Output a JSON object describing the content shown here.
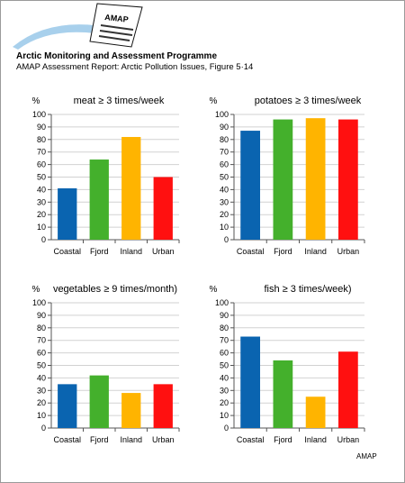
{
  "header": {
    "title": "Arctic Monitoring and Assessment Programme",
    "subtitle": "AMAP Assessment Report: Arctic Pollution Issues, Figure 5·14",
    "logo_text": "AMAP"
  },
  "footer": {
    "credit": "AMAP"
  },
  "colors": {
    "Coastal": "#0a64b0",
    "Fjord": "#44b02c",
    "Inland": "#ffb400",
    "Urban": "#ff1010"
  },
  "chart_data": [
    {
      "type": "bar",
      "title": "meat ≥ 3 times/week",
      "ylabel": "%",
      "categories": [
        "Coastal",
        "Fjord",
        "Inland",
        "Urban"
      ],
      "values": [
        41,
        64,
        82,
        50
      ],
      "ylim": [
        0,
        100
      ],
      "yticks": [
        0,
        10,
        20,
        30,
        40,
        50,
        60,
        70,
        80,
        90,
        100
      ],
      "grid": true
    },
    {
      "type": "bar",
      "title": "potatoes ≥ 3 times/week",
      "ylabel": "%",
      "categories": [
        "Coastal",
        "Fjord",
        "Inland",
        "Urban"
      ],
      "values": [
        87,
        96,
        97,
        96
      ],
      "ylim": [
        0,
        100
      ],
      "yticks": [
        0,
        10,
        20,
        30,
        40,
        50,
        60,
        70,
        80,
        90,
        100
      ],
      "grid": true
    },
    {
      "type": "bar",
      "title": "vegetables ≥ 9 times/month)",
      "ylabel": "%",
      "categories": [
        "Coastal",
        "Fjord",
        "Inland",
        "Urban"
      ],
      "values": [
        35,
        42,
        28,
        35
      ],
      "ylim": [
        0,
        100
      ],
      "yticks": [
        0,
        10,
        20,
        30,
        40,
        50,
        60,
        70,
        80,
        90,
        100
      ],
      "grid": true
    },
    {
      "type": "bar",
      "title": "fish ≥ 3 times/week)",
      "ylabel": "%",
      "categories": [
        "Coastal",
        "Fjord",
        "Inland",
        "Urban"
      ],
      "values": [
        73,
        54,
        25,
        61
      ],
      "ylim": [
        0,
        100
      ],
      "yticks": [
        0,
        10,
        20,
        30,
        40,
        50,
        60,
        70,
        80,
        90,
        100
      ],
      "grid": true
    }
  ]
}
